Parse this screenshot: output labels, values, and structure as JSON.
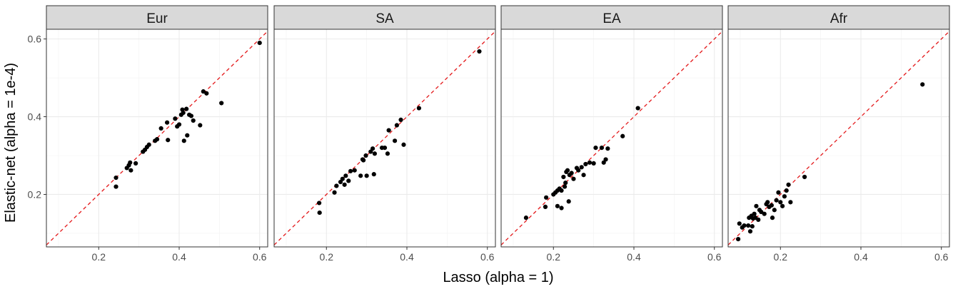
{
  "chart_data": {
    "type": "scatter",
    "xlabel": "Lasso (alpha = 1)",
    "ylabel": "Elastic-net (alpha = 1e-4)",
    "xlim": [
      0.07,
      0.62
    ],
    "ylim": [
      0.065,
      0.625
    ],
    "x_ticks": [
      0.2,
      0.4,
      0.6
    ],
    "y_ticks": [
      0.2,
      0.4,
      0.6
    ],
    "grid": true,
    "reference_line": "y = x",
    "reference_line_color": "#e41a1c",
    "point_color": "#000000",
    "panels": [
      {
        "label": "Eur",
        "points": [
          [
            0.243,
            0.243
          ],
          [
            0.243,
            0.22
          ],
          [
            0.27,
            0.268
          ],
          [
            0.275,
            0.275
          ],
          [
            0.278,
            0.282
          ],
          [
            0.28,
            0.262
          ],
          [
            0.292,
            0.28
          ],
          [
            0.31,
            0.31
          ],
          [
            0.315,
            0.315
          ],
          [
            0.32,
            0.322
          ],
          [
            0.325,
            0.328
          ],
          [
            0.34,
            0.338
          ],
          [
            0.345,
            0.342
          ],
          [
            0.355,
            0.37
          ],
          [
            0.37,
            0.385
          ],
          [
            0.372,
            0.34
          ],
          [
            0.39,
            0.395
          ],
          [
            0.395,
            0.375
          ],
          [
            0.4,
            0.38
          ],
          [
            0.405,
            0.405
          ],
          [
            0.408,
            0.418
          ],
          [
            0.41,
            0.41
          ],
          [
            0.412,
            0.338
          ],
          [
            0.418,
            0.42
          ],
          [
            0.42,
            0.352
          ],
          [
            0.425,
            0.405
          ],
          [
            0.43,
            0.402
          ],
          [
            0.435,
            0.39
          ],
          [
            0.452,
            0.378
          ],
          [
            0.46,
            0.465
          ],
          [
            0.468,
            0.46
          ],
          [
            0.505,
            0.435
          ],
          [
            0.6,
            0.59
          ]
        ]
      },
      {
        "label": "SA",
        "points": [
          [
            0.182,
            0.178
          ],
          [
            0.183,
            0.153
          ],
          [
            0.22,
            0.205
          ],
          [
            0.225,
            0.222
          ],
          [
            0.235,
            0.232
          ],
          [
            0.24,
            0.24
          ],
          [
            0.245,
            0.225
          ],
          [
            0.248,
            0.248
          ],
          [
            0.255,
            0.235
          ],
          [
            0.26,
            0.26
          ],
          [
            0.27,
            0.262
          ],
          [
            0.285,
            0.248
          ],
          [
            0.29,
            0.29
          ],
          [
            0.292,
            0.288
          ],
          [
            0.298,
            0.3
          ],
          [
            0.3,
            0.248
          ],
          [
            0.31,
            0.31
          ],
          [
            0.315,
            0.318
          ],
          [
            0.318,
            0.252
          ],
          [
            0.32,
            0.305
          ],
          [
            0.338,
            0.32
          ],
          [
            0.345,
            0.32
          ],
          [
            0.352,
            0.305
          ],
          [
            0.355,
            0.365
          ],
          [
            0.37,
            0.338
          ],
          [
            0.375,
            0.378
          ],
          [
            0.385,
            0.392
          ],
          [
            0.392,
            0.328
          ],
          [
            0.43,
            0.422
          ],
          [
            0.58,
            0.568
          ]
        ]
      },
      {
        "label": "EA",
        "points": [
          [
            0.132,
            0.14
          ],
          [
            0.18,
            0.168
          ],
          [
            0.182,
            0.192
          ],
          [
            0.2,
            0.2
          ],
          [
            0.205,
            0.205
          ],
          [
            0.21,
            0.17
          ],
          [
            0.21,
            0.21
          ],
          [
            0.215,
            0.215
          ],
          [
            0.22,
            0.165
          ],
          [
            0.22,
            0.21
          ],
          [
            0.225,
            0.245
          ],
          [
            0.228,
            0.22
          ],
          [
            0.23,
            0.23
          ],
          [
            0.232,
            0.258
          ],
          [
            0.235,
            0.262
          ],
          [
            0.238,
            0.182
          ],
          [
            0.24,
            0.25
          ],
          [
            0.245,
            0.255
          ],
          [
            0.25,
            0.24
          ],
          [
            0.258,
            0.268
          ],
          [
            0.262,
            0.262
          ],
          [
            0.27,
            0.27
          ],
          [
            0.275,
            0.25
          ],
          [
            0.28,
            0.278
          ],
          [
            0.29,
            0.282
          ],
          [
            0.3,
            0.28
          ],
          [
            0.305,
            0.32
          ],
          [
            0.32,
            0.32
          ],
          [
            0.325,
            0.282
          ],
          [
            0.33,
            0.29
          ],
          [
            0.335,
            0.318
          ],
          [
            0.372,
            0.35
          ],
          [
            0.41,
            0.422
          ]
        ]
      },
      {
        "label": "Afr",
        "points": [
          [
            0.095,
            0.085
          ],
          [
            0.098,
            0.125
          ],
          [
            0.105,
            0.115
          ],
          [
            0.11,
            0.12
          ],
          [
            0.12,
            0.12
          ],
          [
            0.122,
            0.14
          ],
          [
            0.125,
            0.105
          ],
          [
            0.128,
            0.145
          ],
          [
            0.13,
            0.118
          ],
          [
            0.132,
            0.138
          ],
          [
            0.135,
            0.15
          ],
          [
            0.138,
            0.14
          ],
          [
            0.14,
            0.17
          ],
          [
            0.145,
            0.135
          ],
          [
            0.148,
            0.16
          ],
          [
            0.152,
            0.155
          ],
          [
            0.16,
            0.15
          ],
          [
            0.165,
            0.175
          ],
          [
            0.168,
            0.18
          ],
          [
            0.172,
            0.168
          ],
          [
            0.178,
            0.172
          ],
          [
            0.18,
            0.14
          ],
          [
            0.185,
            0.16
          ],
          [
            0.19,
            0.185
          ],
          [
            0.195,
            0.205
          ],
          [
            0.2,
            0.18
          ],
          [
            0.205,
            0.17
          ],
          [
            0.21,
            0.195
          ],
          [
            0.215,
            0.21
          ],
          [
            0.22,
            0.225
          ],
          [
            0.225,
            0.18
          ],
          [
            0.26,
            0.245
          ],
          [
            0.553,
            0.483
          ]
        ]
      }
    ]
  }
}
